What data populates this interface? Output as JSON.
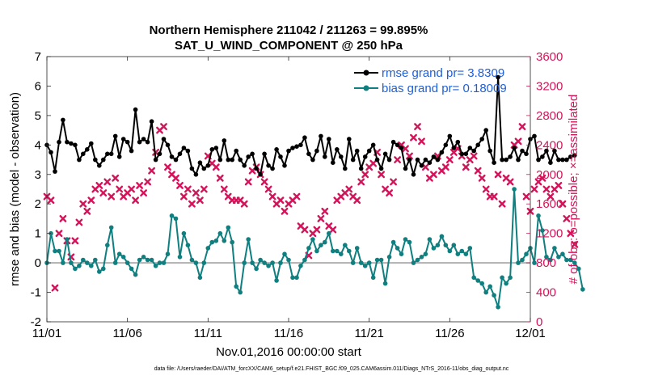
{
  "colors": {
    "rmse": "#000000",
    "bias": "#0f7f7f",
    "obs": "#d4145a",
    "zero_line": "#b0b0b0",
    "legend_text": "#1f5fd6"
  },
  "chart_data": {
    "type": "line",
    "title": "Northern Hemisphere 211042 / 211263 = 99.895%",
    "subtitle": "SAT_U_WIND_COMPONENT @ 250 hPa",
    "xlabel": "Nov.01,2016 00:00:00 start",
    "ylabel_left": "rmse and bias (model - observation)",
    "ylabel_right": "# of obs: o=possible; ×=assimilated",
    "footer": "data file: /Users/raeder/DAI/ATM_forcXX/CAM6_setup/f.e21.FHIST_BGC.f09_025.CAM6assim.011/Diags_NTrS_2016-11/obs_diag_output.nc",
    "x_ticks": [
      "11/01",
      "11/06",
      "11/11",
      "11/16",
      "11/21",
      "11/26",
      "12/01"
    ],
    "xlim_days": [
      0,
      30
    ],
    "y_left_ticks": [
      "-2",
      "-1",
      "0",
      "1",
      "2",
      "3",
      "4",
      "5",
      "6",
      "7"
    ],
    "ylim_left": [
      -2,
      7
    ],
    "y_right_ticks": [
      "0",
      "400",
      "800",
      "1200",
      "1600",
      "2000",
      "2400",
      "2800",
      "3200",
      "3600"
    ],
    "ylim_right": [
      0,
      3600
    ],
    "legend": [
      {
        "label": "rmse grand pr= 3.8309",
        "series": "rmse"
      },
      {
        "label": "bias grand pr= 0.18009",
        "series": "bias"
      }
    ],
    "grid": false,
    "series": [
      {
        "name": "rmse",
        "axis": "left",
        "step_days": 0.25,
        "values": [
          4.0,
          3.75,
          3.1,
          4.1,
          4.85,
          4.1,
          4.05,
          4.0,
          3.5,
          3.7,
          3.85,
          4.05,
          3.5,
          3.3,
          3.5,
          3.7,
          3.7,
          4.3,
          3.6,
          4.2,
          4.1,
          3.8,
          5.2,
          4.1,
          4.2,
          4.1,
          4.8,
          3.5,
          3.7,
          4.2,
          4.0,
          3.6,
          3.5,
          3.7,
          3.9,
          3.8,
          3.2,
          3.0,
          3.4,
          3.2,
          3.3,
          3.85,
          3.9,
          3.5,
          4.15,
          3.5,
          3.5,
          3.8,
          3.5,
          3.3,
          3.6,
          3.7,
          3.2,
          3.0,
          3.7,
          3.3,
          3.2,
          3.85,
          3.6,
          3.3,
          3.8,
          3.9,
          3.95,
          4.0,
          4.25,
          3.7,
          3.5,
          3.8,
          4.3,
          3.6,
          4.2,
          3.4,
          3.85,
          3.6,
          3.2,
          4.2,
          3.5,
          3.8,
          3.2,
          3.6,
          3.8,
          4.0,
          3.5,
          3.2,
          3.7,
          3.5,
          4.1,
          4.0,
          3.9,
          3.2,
          3.5,
          3.0,
          3.5,
          3.3,
          3.5,
          3.4,
          3.6,
          3.5,
          3.75,
          4.0,
          4.3,
          3.9,
          4.1,
          3.7,
          3.7,
          3.9,
          3.8,
          4.0,
          4.2,
          4.5,
          3.8,
          3.4,
          6.3,
          3.5,
          3.5,
          3.6,
          3.9,
          3.5,
          3.8,
          3.7,
          4.2,
          4.3,
          3.5,
          3.6,
          3.8,
          3.4,
          3.8,
          3.5,
          3.5,
          3.5,
          3.6,
          3.65
        ]
      },
      {
        "name": "bias",
        "axis": "left",
        "step_days": 0.25,
        "values": [
          0.0,
          1.0,
          0.4,
          0.4,
          0.0,
          0.8,
          0.0,
          -0.2,
          -0.1,
          0.1,
          0.0,
          -0.1,
          0.1,
          -0.3,
          -0.2,
          0.6,
          1.2,
          0.0,
          0.3,
          0.2,
          0.0,
          -0.2,
          -0.4,
          0.1,
          0.2,
          0.1,
          0.1,
          -0.1,
          0.0,
          0.0,
          0.3,
          1.6,
          1.5,
          0.2,
          1.0,
          0.6,
          0.1,
          0.0,
          -0.5,
          0.0,
          0.5,
          0.7,
          0.75,
          1.0,
          0.75,
          1.2,
          0.7,
          -0.8,
          -1.0,
          0.0,
          0.8,
          0.0,
          -0.2,
          0.1,
          0.0,
          -0.1,
          0.0,
          -0.6,
          0.0,
          0.3,
          0.1,
          -0.5,
          -0.5,
          -0.1,
          0.1,
          0.5,
          0.8,
          0.4,
          0.6,
          0.7,
          1.0,
          0.4,
          0.4,
          0.3,
          0.6,
          0.4,
          0.0,
          0.5,
          0.0,
          -0.1,
          0.0,
          -0.5,
          0.1,
          0.1,
          -0.7,
          0.2,
          0.7,
          0.5,
          0.3,
          0.8,
          0.7,
          0.0,
          0.1,
          0.2,
          0.3,
          0.8,
          0.5,
          0.6,
          0.9,
          0.6,
          0.4,
          0.6,
          0.3,
          0.4,
          0.3,
          0.5,
          -0.5,
          -0.6,
          -0.7,
          -1.0,
          -0.8,
          -1.1,
          -1.5,
          -0.5,
          -0.7,
          -0.5,
          2.5,
          0.0,
          0.1,
          0.3,
          0.5,
          0.0,
          1.6,
          1.1,
          0.2,
          0.1,
          0.5,
          0.2,
          0.3,
          0.1,
          0.1,
          0.0,
          -0.2,
          -0.9
        ]
      },
      {
        "name": "obs_assimilated",
        "axis": "right",
        "marker": "x",
        "step_days": 0.25,
        "values": [
          1700,
          1650,
          460,
          1200,
          1400,
          1100,
          880,
          1100,
          1350,
          1600,
          1500,
          1650,
          1800,
          1850,
          1750,
          1900,
          1700,
          1950,
          1800,
          1700,
          1750,
          1800,
          1650,
          1850,
          1750,
          1900,
          2050,
          2300,
          2600,
          2650,
          2100,
          2000,
          1950,
          1850,
          1700,
          1800,
          1600,
          1750,
          1650,
          1800,
          2250,
          2150,
          2100,
          1950,
          1800,
          1700,
          1650,
          1650,
          1650,
          1600,
          1900,
          2050,
          2100,
          2000,
          1900,
          1800,
          1700,
          1600,
          1650,
          1500,
          1600,
          1650,
          1700,
          1300,
          1250,
          900,
          1200,
          1250,
          1400,
          1500,
          1300,
          1250,
          1650,
          1700,
          1750,
          1800,
          1700,
          1650,
          1900,
          2000,
          2100,
          2150,
          2300,
          2000,
          1800,
          1750,
          1900,
          2200,
          2400,
          2350,
          2250,
          2500,
          2650,
          2450,
          2100,
          1950,
          2000,
          2250,
          2050,
          2100,
          2200,
          2300,
          2350,
          2250,
          2100,
          2200,
          2250,
          2050,
          1950,
          1800,
          1700,
          1700,
          2000,
          1600,
          1950,
          1900,
          2400,
          2450,
          2650,
          1700,
          1500,
          1800,
          1900,
          1950,
          1800,
          1700,
          1800,
          1850,
          1600,
          1400,
          1200,
          1050
        ]
      }
    ]
  }
}
